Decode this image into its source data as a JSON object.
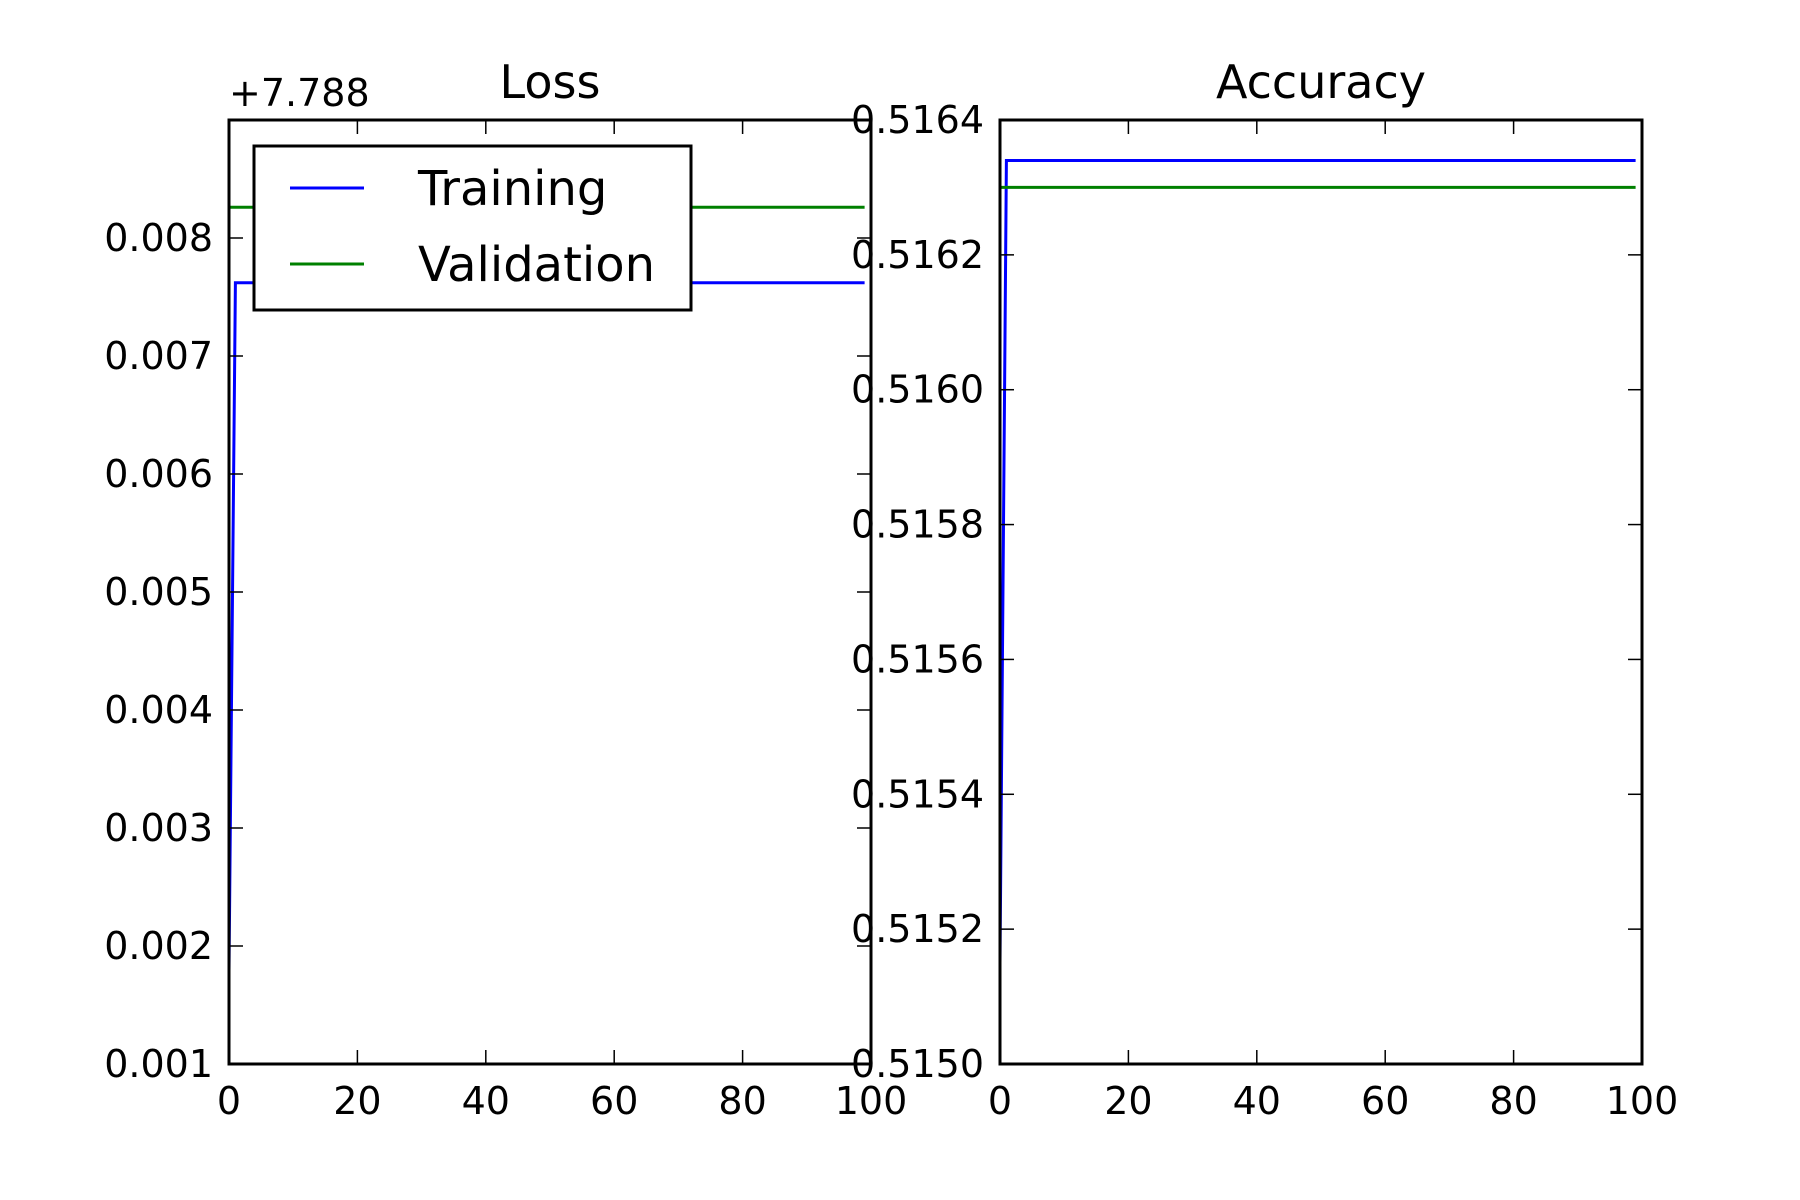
{
  "chart_data": [
    {
      "type": "line",
      "title": "Loss",
      "xlabel": "",
      "ylabel": "",
      "offset_label": "+7.788",
      "xlim": [
        0,
        100
      ],
      "ylim": [
        0.001,
        0.009
      ],
      "xticks": [
        0,
        20,
        40,
        60,
        80,
        100
      ],
      "xtick_labels": [
        "0",
        "20",
        "40",
        "60",
        "80",
        "100"
      ],
      "yticks": [
        0.001,
        0.002,
        0.003,
        0.004,
        0.005,
        0.006,
        0.007,
        0.008
      ],
      "ytick_labels": [
        "0.001",
        "0.002",
        "0.003",
        "0.004",
        "0.005",
        "0.006",
        "0.007",
        "0.008"
      ],
      "grid": false,
      "legend": "upper-left",
      "series": [
        {
          "name": "Training",
          "color": "#0000ff",
          "x": [
            0,
            1,
            99
          ],
          "y": [
            0.00179,
            0.00762,
            0.00762
          ]
        },
        {
          "name": "Validation",
          "color": "#008000",
          "x": [
            0,
            99
          ],
          "y": [
            0.00826,
            0.00826
          ]
        }
      ]
    },
    {
      "type": "line",
      "title": "Accuracy",
      "xlabel": "",
      "ylabel": "",
      "xlim": [
        0,
        100
      ],
      "ylim": [
        0.515,
        0.5164
      ],
      "xticks": [
        0,
        20,
        40,
        60,
        80,
        100
      ],
      "xtick_labels": [
        "0",
        "20",
        "40",
        "60",
        "80",
        "100"
      ],
      "yticks": [
        0.515,
        0.5152,
        0.5154,
        0.5156,
        0.5158,
        0.516,
        0.5162,
        0.5164
      ],
      "ytick_labels": [
        "0.5150",
        "0.5152",
        "0.5154",
        "0.5156",
        "0.5158",
        "0.5160",
        "0.5162",
        "0.5164"
      ],
      "grid": false,
      "legend": "",
      "series": [
        {
          "name": "Training",
          "color": "#0000ff",
          "x": [
            0,
            1,
            99
          ],
          "y": [
            0.51515,
            0.51634,
            0.51634
          ]
        },
        {
          "name": "Validation",
          "color": "#008000",
          "x": [
            0,
            99
          ],
          "y": [
            0.5163,
            0.5163
          ]
        }
      ]
    }
  ]
}
